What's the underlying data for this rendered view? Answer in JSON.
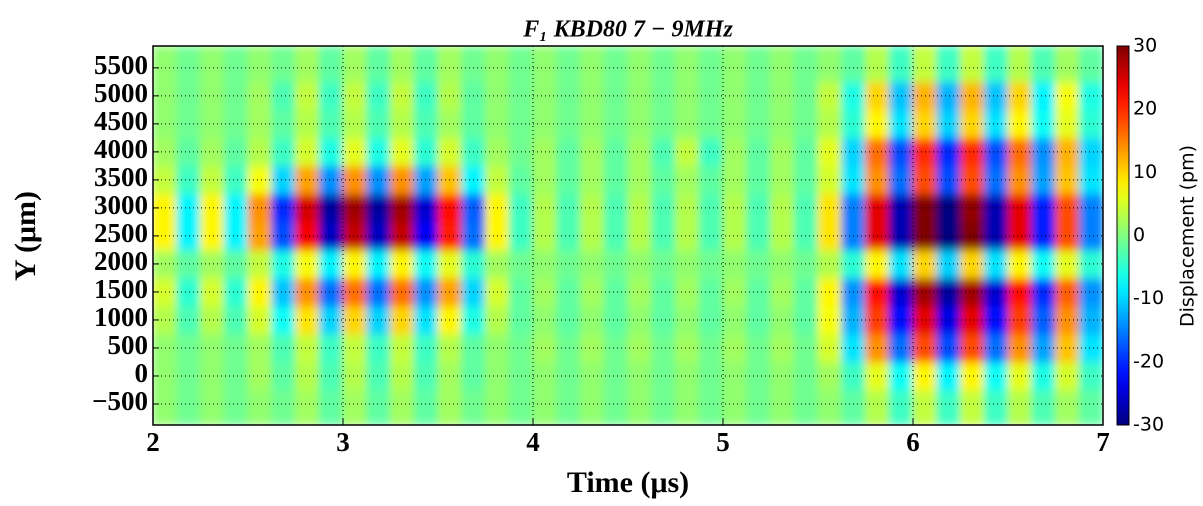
{
  "chart_data": {
    "type": "heatmap",
    "title": "F₁   KBD80   7 − 9MHz",
    "x_label": "Time (μs)",
    "y_label": "Y (μm)",
    "colorbar_label": "Displacement (pm)",
    "colormap": "jet",
    "grid": true,
    "xlim": [
      2,
      7
    ],
    "xticks": [
      2,
      3,
      4,
      5,
      6,
      7
    ],
    "ylim": [
      -875,
      5890
    ],
    "yticks": [
      {
        "value": -500,
        "label": "−500"
      },
      0,
      500,
      1000,
      1500,
      2000,
      2500,
      3000,
      3500,
      4000,
      4500,
      5000,
      5500
    ],
    "zlim": [
      -30,
      30
    ],
    "colorbar_ticks": [
      -30,
      -20,
      -10,
      0,
      10,
      20,
      30
    ],
    "x": [
      2.0625,
      2.1875,
      2.3125,
      2.4375,
      2.5625,
      2.6875,
      2.8125,
      2.9375,
      3.0625,
      3.1875,
      3.3125,
      3.4375,
      3.5625,
      3.6875,
      3.8125,
      3.9375,
      4.0625,
      4.1875,
      4.3125,
      4.4375,
      4.5625,
      4.6875,
      4.8125,
      4.9375,
      5.0625,
      5.1875,
      5.3125,
      5.4375,
      5.5625,
      5.6875,
      5.8125,
      5.9375,
      6.0625,
      6.1875,
      6.3125,
      6.4375,
      6.5625,
      6.6875,
      6.8125,
      6.9375
    ],
    "y": [
      -500,
      0,
      500,
      1000,
      1500,
      2000,
      2500,
      3000,
      3500,
      4000,
      4500,
      5000,
      5500
    ],
    "z": [
      [
        1,
        -1,
        1,
        -1,
        1,
        -1,
        2,
        -2,
        2,
        -2,
        2,
        -2,
        2,
        -1,
        1,
        -1,
        1,
        -1,
        1,
        -1,
        1,
        -1,
        1,
        -1,
        1,
        -1,
        1,
        -1,
        1,
        -2,
        3,
        -4,
        4,
        -4,
        4,
        -4,
        3,
        -3,
        2,
        -2
      ],
      [
        1,
        -1,
        1,
        -1,
        2,
        -2,
        3,
        -3,
        3,
        -3,
        3,
        -3,
        2,
        -2,
        1,
        -1,
        1,
        -1,
        1,
        -1,
        1,
        -1,
        1,
        -1,
        1,
        -1,
        1,
        -1,
        2,
        -4,
        6,
        -7,
        8,
        -8,
        8,
        -7,
        6,
        -6,
        5,
        -4
      ],
      [
        1,
        -1,
        1,
        -1,
        2,
        -3,
        4,
        -4,
        4,
        -4,
        4,
        -4,
        3,
        -2,
        1,
        -1,
        2,
        -1,
        2,
        -1,
        2,
        -1,
        2,
        -1,
        2,
        -1,
        2,
        -1,
        5,
        -9,
        14,
        -16,
        18,
        -18,
        18,
        -16,
        14,
        -13,
        11,
        -9
      ],
      [
        3,
        -3,
        3,
        -3,
        5,
        -7,
        9,
        -10,
        10,
        -10,
        10,
        -9,
        8,
        -6,
        3,
        -2,
        1,
        -2,
        1,
        -2,
        1,
        -2,
        1,
        -2,
        1,
        -2,
        1,
        -2,
        7,
        -12,
        19,
        -22,
        24,
        -24,
        24,
        -22,
        19,
        -17,
        14,
        -12
      ],
      [
        5,
        -5,
        5,
        -5,
        8,
        -11,
        14,
        -16,
        16,
        -16,
        16,
        -14,
        13,
        -10,
        5,
        -2,
        2,
        -2,
        2,
        -2,
        2,
        -2,
        2,
        -2,
        2,
        -2,
        2,
        -2,
        8,
        -14,
        22,
        -25,
        28,
        -28,
        28,
        -25,
        22,
        -20,
        17,
        -14
      ],
      [
        2,
        -2,
        2,
        -2,
        4,
        -6,
        7,
        -8,
        8,
        -8,
        8,
        -7,
        6,
        -5,
        2,
        -1,
        1,
        -1,
        1,
        -1,
        1,
        -1,
        1,
        -1,
        1,
        -1,
        1,
        -1,
        3,
        -5,
        8,
        -9,
        10,
        -10,
        10,
        -9,
        8,
        -7,
        6,
        -5
      ],
      [
        8,
        -8,
        8,
        -8,
        13,
        -18,
        23,
        -26,
        26,
        -26,
        26,
        -23,
        21,
        -16,
        8,
        -4,
        3,
        -3,
        3,
        -3,
        3,
        -3,
        3,
        -3,
        3,
        -3,
        3,
        -3,
        9,
        -15,
        24,
        -27,
        30,
        -30,
        30,
        -27,
        24,
        -21,
        18,
        -15
      ],
      [
        8,
        -8,
        8,
        -8,
        14,
        -20,
        25,
        -28,
        28,
        -28,
        28,
        -25,
        22,
        -17,
        8,
        -4,
        3,
        -3,
        3,
        -3,
        3,
        -3,
        3,
        -3,
        3,
        -3,
        3,
        -3,
        9,
        -15,
        24,
        -27,
        30,
        -30,
        29,
        -27,
        24,
        -21,
        18,
        -15
      ],
      [
        4,
        -4,
        4,
        -4,
        7,
        -10,
        13,
        -14,
        14,
        -14,
        14,
        -13,
        11,
        -8,
        4,
        -2,
        2,
        -2,
        2,
        -2,
        2,
        -2,
        2,
        -2,
        2,
        -2,
        2,
        -2,
        5,
        -9,
        14,
        -16,
        18,
        -18,
        18,
        -16,
        14,
        -13,
        11,
        -9
      ],
      [
        2,
        -2,
        2,
        -2,
        3,
        -4,
        5,
        -6,
        6,
        -6,
        6,
        -5,
        5,
        -4,
        2,
        -1,
        2,
        -2,
        2,
        -2,
        2,
        -3,
        4,
        -4,
        2,
        -2,
        2,
        -2,
        6,
        -10,
        16,
        -18,
        20,
        -20,
        20,
        -18,
        16,
        -14,
        12,
        -10
      ],
      [
        1,
        -1,
        1,
        -1,
        2,
        -2,
        3,
        -3,
        3,
        -3,
        3,
        -3,
        2,
        -2,
        1,
        -1,
        1,
        -1,
        1,
        -1,
        1,
        -1,
        1,
        -1,
        1,
        -1,
        1,
        -1,
        3,
        -5,
        8,
        -9,
        10,
        -10,
        10,
        -9,
        8,
        -7,
        6,
        -5
      ],
      [
        1,
        -1,
        1,
        -1,
        2,
        -3,
        4,
        -4,
        4,
        -4,
        4,
        -4,
        3,
        -2,
        1,
        -1,
        1,
        -1,
        1,
        -1,
        1,
        -1,
        1,
        -1,
        1,
        -1,
        1,
        -1,
        4,
        -6,
        10,
        -11,
        12,
        -12,
        12,
        -11,
        10,
        -8,
        7,
        -6
      ],
      [
        1,
        -1,
        1,
        -1,
        1,
        -1,
        2,
        -2,
        2,
        -2,
        2,
        -2,
        2,
        -1,
        1,
        -1,
        1,
        -1,
        1,
        -1,
        1,
        -1,
        1,
        -1,
        1,
        -1,
        1,
        -1,
        1,
        -2,
        3,
        -4,
        4,
        -4,
        4,
        -4,
        3,
        -3,
        2,
        -2
      ]
    ]
  }
}
